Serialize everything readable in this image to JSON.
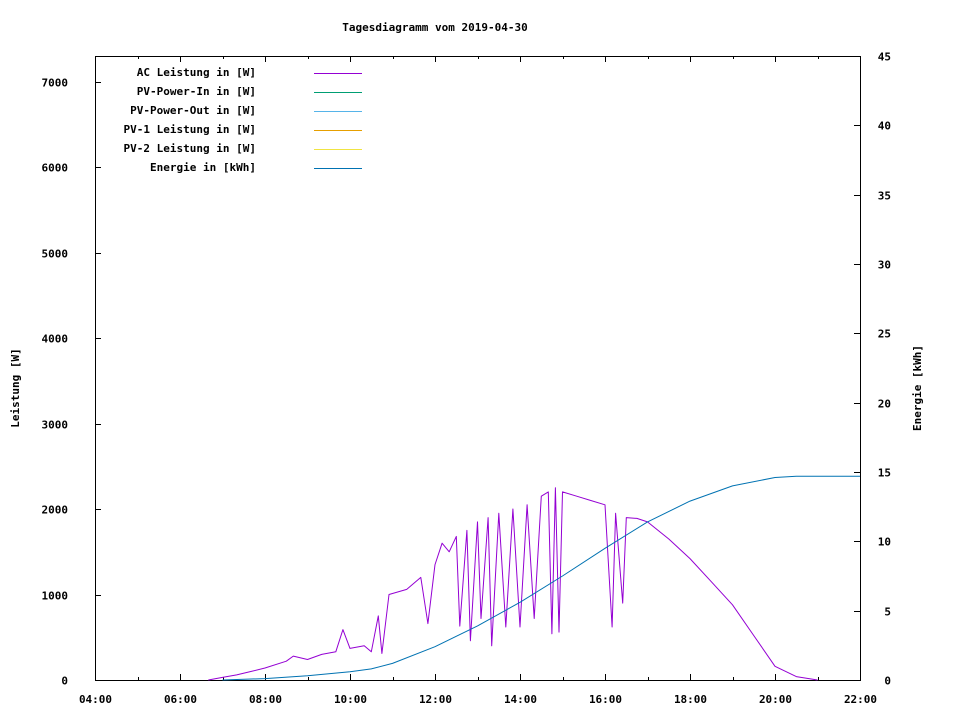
{
  "chart_data": {
    "type": "line",
    "title": "Tagesdiagramm vom 2019-04-30",
    "xlabel": "",
    "ylabel": "Leistung [W]",
    "y2label": "Energie [kWh]",
    "x_ticks": [
      "04:00",
      "06:00",
      "08:00",
      "10:00",
      "12:00",
      "14:00",
      "16:00",
      "18:00",
      "20:00",
      "22:00"
    ],
    "y_ticks": [
      "0",
      "1000",
      "2000",
      "3000",
      "4000",
      "5000",
      "6000",
      "7000"
    ],
    "y2_ticks": [
      "0",
      "5",
      "10",
      "15",
      "20",
      "25",
      "30",
      "35",
      "40",
      "45"
    ],
    "xlim": [
      "04:00",
      "22:00"
    ],
    "ylim": [
      0,
      7300
    ],
    "y2lim": [
      0,
      45
    ],
    "grid": false,
    "legend_position": "top-left",
    "series": [
      {
        "name": "AC Leistung in [W]",
        "color": "#9400d3",
        "axis": "y1",
        "points": [
          [
            "06:40",
            0
          ],
          [
            "07:00",
            30
          ],
          [
            "07:20",
            60
          ],
          [
            "07:40",
            100
          ],
          [
            "08:00",
            140
          ],
          [
            "08:30",
            220
          ],
          [
            "08:40",
            280
          ],
          [
            "09:00",
            240
          ],
          [
            "09:20",
            300
          ],
          [
            "09:40",
            330
          ],
          [
            "09:50",
            590
          ],
          [
            "10:00",
            370
          ],
          [
            "10:20",
            400
          ],
          [
            "10:30",
            330
          ],
          [
            "10:40",
            750
          ],
          [
            "10:45",
            310
          ],
          [
            "10:55",
            1000
          ],
          [
            "11:20",
            1060
          ],
          [
            "11:40",
            1200
          ],
          [
            "11:50",
            660
          ],
          [
            "12:00",
            1350
          ],
          [
            "12:10",
            1600
          ],
          [
            "12:20",
            1500
          ],
          [
            "12:30",
            1680
          ],
          [
            "12:35",
            630
          ],
          [
            "12:45",
            1750
          ],
          [
            "12:50",
            460
          ],
          [
            "13:00",
            1850
          ],
          [
            "13:05",
            720
          ],
          [
            "13:15",
            1900
          ],
          [
            "13:20",
            400
          ],
          [
            "13:30",
            1950
          ],
          [
            "13:40",
            620
          ],
          [
            "13:50",
            2000
          ],
          [
            "14:00",
            620
          ],
          [
            "14:10",
            2050
          ],
          [
            "14:20",
            720
          ],
          [
            "14:30",
            2150
          ],
          [
            "14:40",
            2200
          ],
          [
            "14:45",
            540
          ],
          [
            "14:50",
            2250
          ],
          [
            "14:55",
            560
          ],
          [
            "15:00",
            2200
          ],
          [
            "15:20",
            2150
          ],
          [
            "15:40",
            2100
          ],
          [
            "16:00",
            2050
          ],
          [
            "16:10",
            620
          ],
          [
            "16:15",
            1950
          ],
          [
            "16:25",
            900
          ],
          [
            "16:30",
            1900
          ],
          [
            "16:45",
            1890
          ],
          [
            "17:00",
            1850
          ],
          [
            "17:30",
            1650
          ],
          [
            "18:00",
            1420
          ],
          [
            "18:30",
            1150
          ],
          [
            "19:00",
            880
          ],
          [
            "19:30",
            520
          ],
          [
            "20:00",
            160
          ],
          [
            "20:30",
            40
          ],
          [
            "21:00",
            0
          ]
        ]
      },
      {
        "name": "PV-Power-In in [W]",
        "color": "#009e73",
        "axis": "y1",
        "points": []
      },
      {
        "name": "PV-Power-Out in [W]",
        "color": "#56b4e9",
        "axis": "y1",
        "points": []
      },
      {
        "name": "PV-1 Leistung in [W]",
        "color": "#e69f00",
        "axis": "y1",
        "points": []
      },
      {
        "name": "PV-2 Leistung in [W]",
        "color": "#f0e442",
        "axis": "y1",
        "points": []
      },
      {
        "name": "Energie in [kWh]",
        "color": "#0072b2",
        "axis": "y2",
        "points": [
          [
            "07:00",
            0
          ],
          [
            "08:00",
            0.1
          ],
          [
            "09:00",
            0.3
          ],
          [
            "10:00",
            0.6
          ],
          [
            "10:30",
            0.8
          ],
          [
            "11:00",
            1.2
          ],
          [
            "12:00",
            2.4
          ],
          [
            "13:00",
            3.9
          ],
          [
            "14:00",
            5.6
          ],
          [
            "15:00",
            7.5
          ],
          [
            "16:00",
            9.5
          ],
          [
            "17:00",
            11.4
          ],
          [
            "18:00",
            12.9
          ],
          [
            "19:00",
            14.0
          ],
          [
            "20:00",
            14.6
          ],
          [
            "20:30",
            14.7
          ],
          [
            "22:00",
            14.7
          ]
        ]
      }
    ]
  }
}
